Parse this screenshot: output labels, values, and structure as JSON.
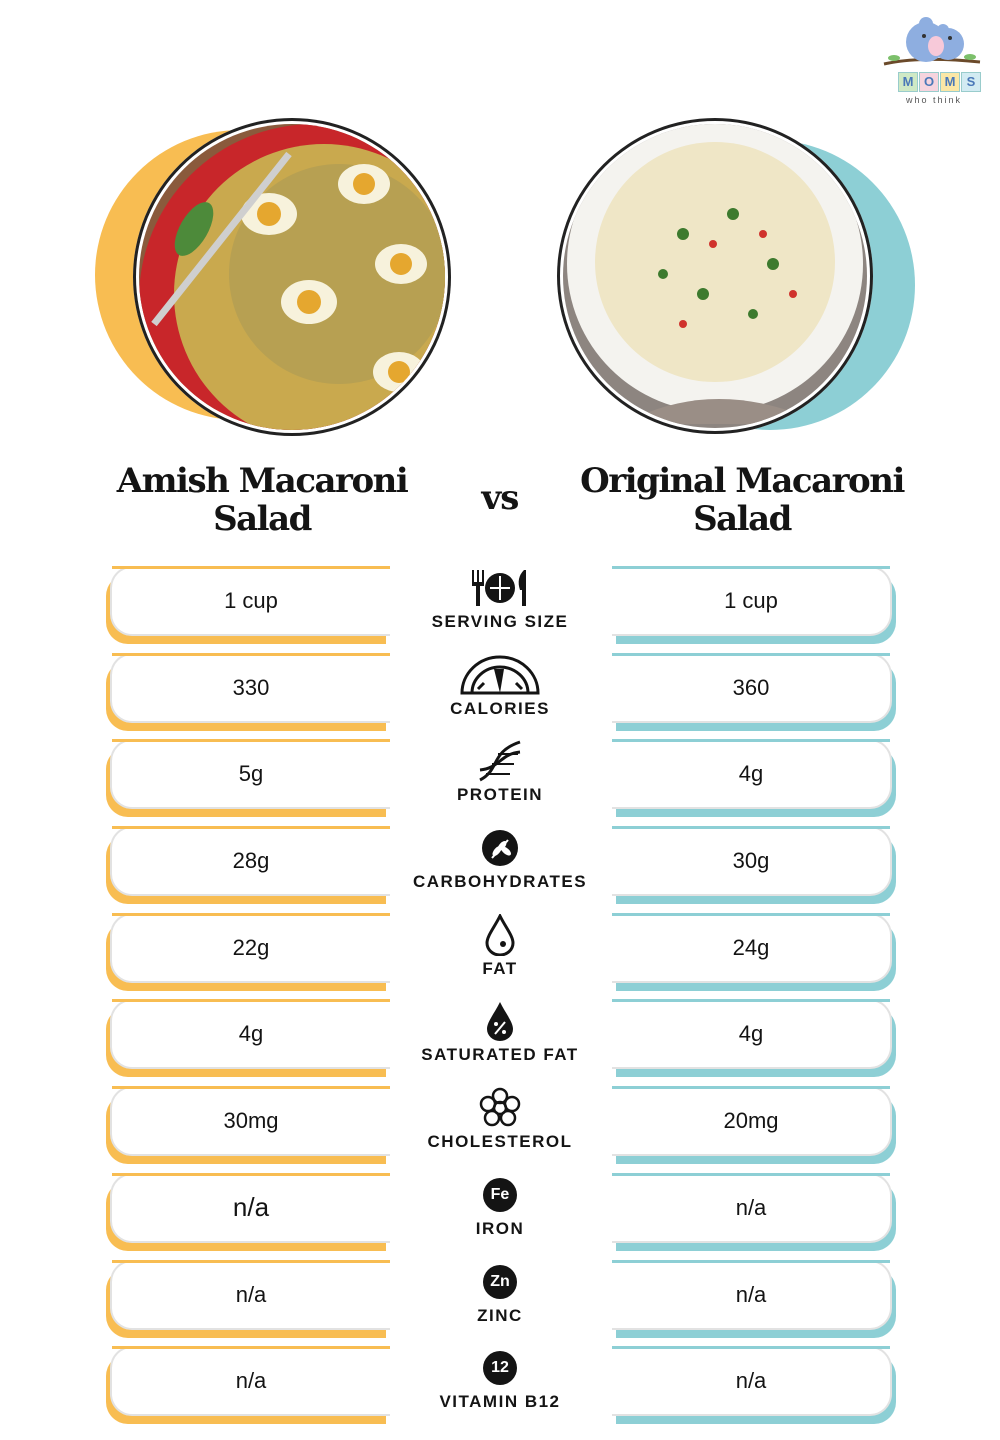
{
  "logo": {
    "letters": [
      "M",
      "O",
      "M",
      "S"
    ],
    "tagline": "who think"
  },
  "colors": {
    "left_accent": "#f8bd52",
    "right_accent": "#8dcfd5",
    "text": "#141414"
  },
  "left": {
    "title": "Amish Macaroni Salad"
  },
  "right": {
    "title": "Original Macaroni Salad"
  },
  "vs_label": "vs",
  "rows": [
    {
      "label": "SERVING SIZE",
      "icon": "utensils-plate-icon",
      "left": "1 cup",
      "right": "1 cup"
    },
    {
      "label": "CALORIES",
      "icon": "gauge-icon",
      "left": "330",
      "right": "360"
    },
    {
      "label": "PROTEIN",
      "icon": "dna-icon",
      "left": "5g",
      "right": "4g"
    },
    {
      "label": "CARBOHYDRATES",
      "icon": "wheat-icon",
      "left": "28g",
      "right": "30g"
    },
    {
      "label": "FAT",
      "icon": "droplet-icon",
      "left": "22g",
      "right": "24g"
    },
    {
      "label": "SATURATED FAT",
      "icon": "percent-droplet-icon",
      "left": "4g",
      "right": "4g"
    },
    {
      "label": "CHOLESTEROL",
      "icon": "cholesterol-icon",
      "left": "30mg",
      "right": "20mg"
    },
    {
      "label": "IRON",
      "icon": "fe-icon",
      "badge": "Fe",
      "left": "n/a",
      "right": "n/a"
    },
    {
      "label": "ZINC",
      "icon": "zn-icon",
      "badge": "Zn",
      "left": "n/a",
      "right": "n/a"
    },
    {
      "label": "VITAMIN B12",
      "icon": "b12-icon",
      "badge": "12",
      "left": "n/a",
      "right": "n/a"
    }
  ]
}
